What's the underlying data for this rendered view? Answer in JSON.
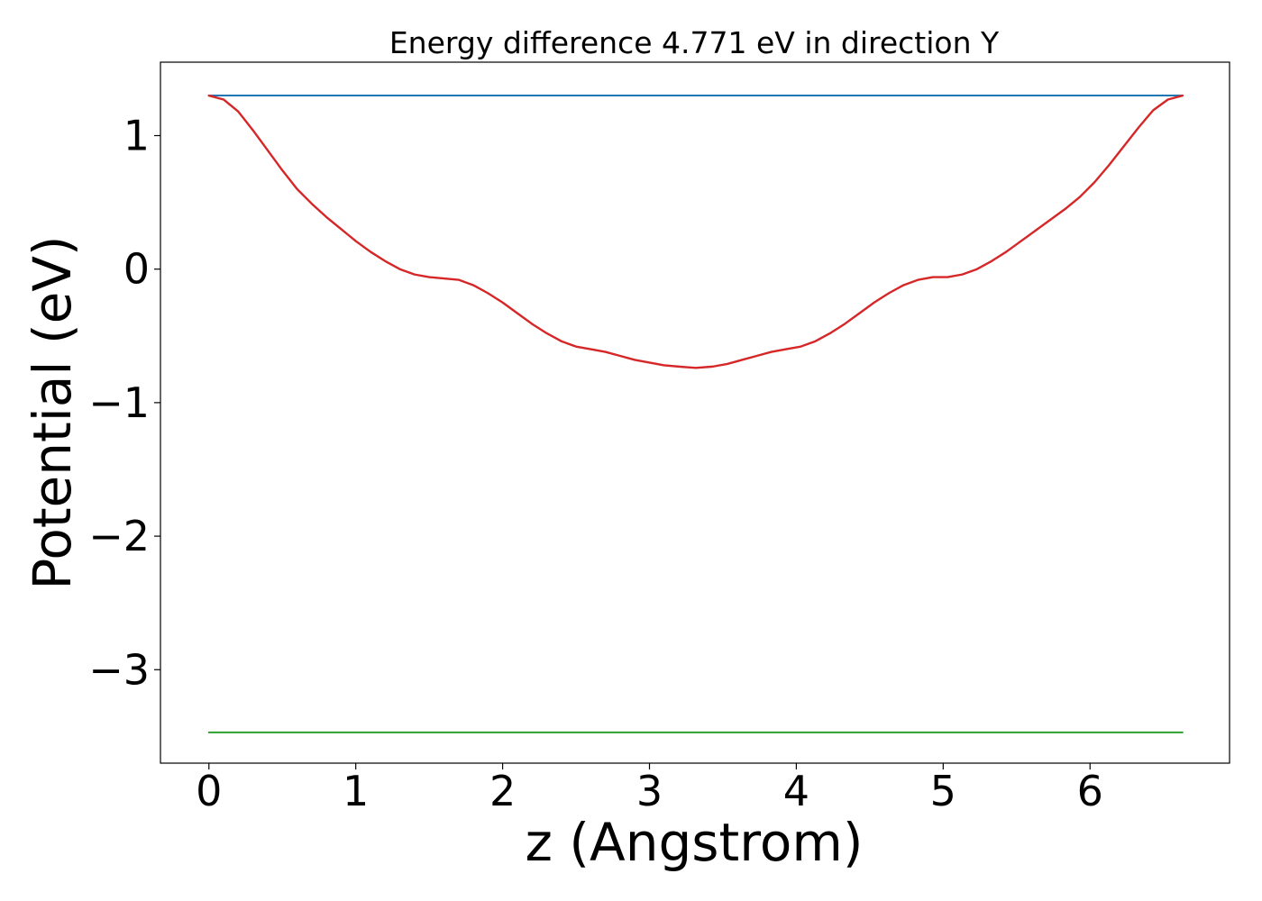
{
  "chart_data": {
    "type": "line",
    "title": "Energy difference 4.771 eV in direction Y",
    "xlabel": "z (Angstrom)",
    "ylabel": "Potential (eV)",
    "xlim": [
      -0.33,
      6.95
    ],
    "ylim": [
      -3.7,
      1.55
    ],
    "xticks": [
      0,
      1,
      2,
      3,
      4,
      5,
      6
    ],
    "xtick_labels": [
      "0",
      "1",
      "2",
      "3",
      "4",
      "5",
      "6"
    ],
    "yticks": [
      1,
      0,
      -1,
      -2,
      -3
    ],
    "ytick_labels": [
      "1",
      "0",
      "−1",
      "−2",
      "−3"
    ],
    "grid": false,
    "series": [
      {
        "color": "#1f77b4",
        "style": "horizontal",
        "x": [
          0,
          6.63
        ],
        "y": [
          1.3,
          1.3
        ]
      },
      {
        "color": "#2ca02c",
        "style": "horizontal",
        "x": [
          0,
          6.63
        ],
        "y": [
          -3.47,
          -3.47
        ]
      },
      {
        "color": "#d62728",
        "style": "curve",
        "x": [
          0.0,
          0.1,
          0.2,
          0.3,
          0.4,
          0.5,
          0.6,
          0.7,
          0.8,
          0.9,
          1.0,
          1.1,
          1.2,
          1.3,
          1.4,
          1.5,
          1.6,
          1.7,
          1.8,
          1.9,
          2.0,
          2.1,
          2.2,
          2.3,
          2.4,
          2.5,
          2.6,
          2.7,
          2.8,
          2.9,
          3.0,
          3.1,
          3.2,
          3.315,
          3.43,
          3.53,
          3.63,
          3.73,
          3.83,
          3.93,
          4.03,
          4.13,
          4.23,
          4.33,
          4.43,
          4.53,
          4.63,
          4.73,
          4.83,
          4.93,
          5.03,
          5.13,
          5.23,
          5.33,
          5.43,
          5.53,
          5.63,
          5.73,
          5.83,
          5.93,
          6.03,
          6.13,
          6.23,
          6.33,
          6.43,
          6.53,
          6.63
        ],
        "y": [
          1.3,
          1.27,
          1.18,
          1.04,
          0.89,
          0.74,
          0.6,
          0.49,
          0.39,
          0.3,
          0.21,
          0.13,
          0.06,
          0.0,
          -0.04,
          -0.06,
          -0.07,
          -0.08,
          -0.12,
          -0.18,
          -0.25,
          -0.33,
          -0.41,
          -0.48,
          -0.54,
          -0.58,
          -0.6,
          -0.62,
          -0.65,
          -0.68,
          -0.7,
          -0.72,
          -0.73,
          -0.74,
          -0.73,
          -0.71,
          -0.68,
          -0.65,
          -0.62,
          -0.6,
          -0.58,
          -0.54,
          -0.48,
          -0.41,
          -0.33,
          -0.25,
          -0.18,
          -0.12,
          -0.08,
          -0.06,
          -0.06,
          -0.04,
          0.0,
          0.06,
          0.13,
          0.21,
          0.29,
          0.37,
          0.45,
          0.54,
          0.65,
          0.78,
          0.92,
          1.06,
          1.19,
          1.27,
          1.3
        ]
      }
    ]
  }
}
